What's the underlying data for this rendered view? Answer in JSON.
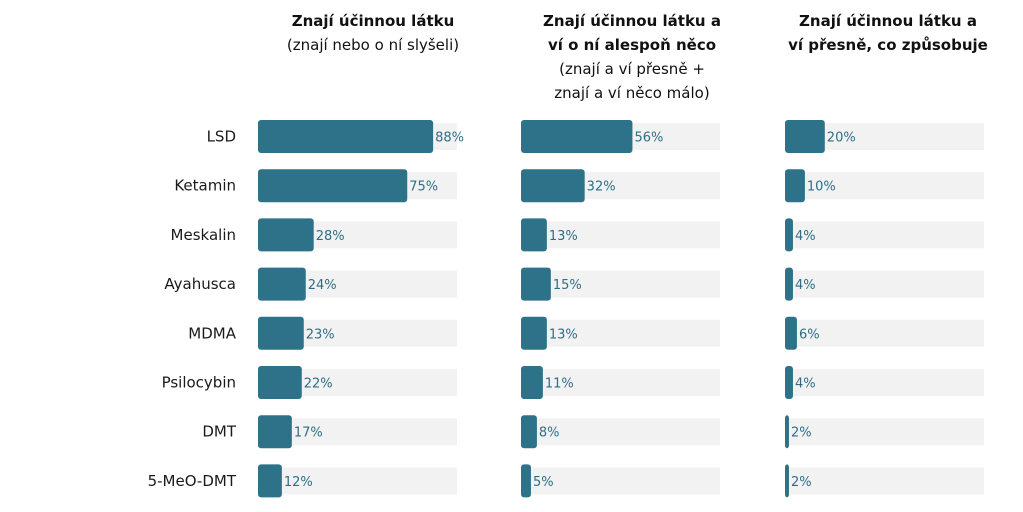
{
  "chart_data": {
    "type": "bar",
    "categories": [
      "LSD",
      "Ketamin",
      "Meskalin",
      "Ayahusca",
      "MDMA",
      "Psilocybin",
      "DMT",
      "5-MeO-DMT"
    ],
    "xlim": [
      0,
      100
    ],
    "grid": false,
    "legend": "none",
    "colors": {
      "bar": "#2e7289",
      "track": "#f2f2f2",
      "value_label": "#2f6f86"
    },
    "panels": [
      {
        "title_lines": [
          {
            "text": "Znají účinnou látku",
            "bold": true
          },
          {
            "text": "(znají nebo o ní slyšeli)",
            "bold": false
          }
        ],
        "values": [
          88,
          75,
          28,
          24,
          23,
          22,
          17,
          12
        ],
        "value_labels": [
          "88%",
          "75%",
          "28%",
          "24%",
          "23%",
          "22%",
          "17%",
          "12%"
        ]
      },
      {
        "title_lines": [
          {
            "text": "Znají účinnou látku a",
            "bold": true
          },
          {
            "text": "ví o ní alespoň něco",
            "bold": true
          },
          {
            "text": "(znají a ví přesně +",
            "bold": false
          },
          {
            "text": "znají a ví něco málo)",
            "bold": false
          }
        ],
        "values": [
          56,
          32,
          13,
          15,
          13,
          11,
          8,
          5
        ],
        "value_labels": [
          "56%",
          "32%",
          "13%",
          "15%",
          "13%",
          "11%",
          "8%",
          "5%"
        ]
      },
      {
        "title_lines": [
          {
            "text": "Znají účinnou látku a",
            "bold": true
          },
          {
            "text": "ví přesně, co způsobuje",
            "bold": true
          }
        ],
        "values": [
          20,
          10,
          4,
          4,
          6,
          4,
          2,
          2
        ],
        "value_labels": [
          "20%",
          "10%",
          "4%",
          "4%",
          "6%",
          "4%",
          "2%",
          "2%"
        ]
      }
    ]
  }
}
